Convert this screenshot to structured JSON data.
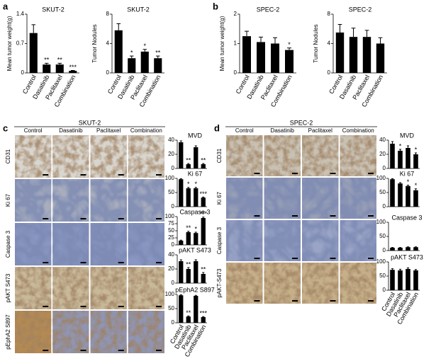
{
  "panels": [
    {
      "label": "a"
    },
    {
      "label": "b"
    },
    {
      "label": "c",
      "title": "SKUT-2",
      "columns": [
        "Control",
        "Dasatinib",
        "Paclitaxel",
        "Combination"
      ],
      "rows": [
        "CD31",
        "Ki 67",
        "Caspase 3",
        "pAKT S473",
        "pEphA2 S897"
      ]
    },
    {
      "label": "d",
      "title": "SPEC-2",
      "columns": [
        "Control",
        "Dasatinib",
        "Paclitaxel",
        "Combination"
      ],
      "rows": [
        "CD31",
        "Ki 67",
        "Caspase 3",
        "pAKT-S473"
      ]
    }
  ],
  "chart_data": [
    {
      "type": "bar",
      "title": "SKUT-2",
      "ylabel": "Mean tumor weight(g)",
      "categories": [
        "Control",
        "Dasatinib",
        "Paclitaxel",
        "Combination"
      ],
      "values": [
        0.95,
        0.2,
        0.2,
        0.05
      ],
      "errors": [
        0.2,
        0.03,
        0.03,
        0.01
      ],
      "stars": [
        null,
        "**",
        "**",
        "***"
      ],
      "ylim": [
        0,
        1.4
      ],
      "yticks": [
        0,
        0.7,
        1.4
      ],
      "color": "#000000"
    },
    {
      "type": "bar",
      "title": "SKUT-2",
      "ylabel": "Tumor Nodules",
      "categories": [
        "Control",
        "Dasatinib",
        "Paclitaxel",
        "Combination"
      ],
      "values": [
        5.8,
        2,
        2.9,
        2
      ],
      "errors": [
        0.9,
        0.3,
        0.3,
        0.3
      ],
      "stars": [
        null,
        "*",
        "*",
        "**"
      ],
      "ylim": [
        0,
        8
      ],
      "yticks": [
        0,
        4,
        8
      ],
      "color": "#000000"
    },
    {
      "type": "bar",
      "title": "SPEC-2",
      "ylabel": "Mean tumor weight(g)",
      "categories": [
        "Control",
        "Dasatinib",
        "Paclitaxel",
        "Combination"
      ],
      "values": [
        1.25,
        1.05,
        1.0,
        0.78
      ],
      "errors": [
        0.17,
        0.17,
        0.2,
        0.07
      ],
      "stars": [
        null,
        null,
        null,
        "*"
      ],
      "ylim": [
        0,
        2
      ],
      "yticks": [
        0,
        1,
        2
      ],
      "color": "#000000"
    },
    {
      "type": "bar",
      "title": "SPEC-2",
      "ylabel": "Tumor Nodules",
      "categories": [
        "Control",
        "Dasatinib",
        "Paclitaxel",
        "Combination"
      ],
      "values": [
        5.5,
        4.9,
        4.9,
        4.0
      ],
      "errors": [
        1.1,
        1.2,
        0.9,
        0.8
      ],
      "stars": [
        null,
        null,
        null,
        null
      ],
      "ylim": [
        0,
        8
      ],
      "yticks": [
        0,
        4,
        8
      ],
      "color": "#000000"
    },
    {
      "type": "bar",
      "title": "MVD",
      "values": [
        37,
        6,
        30,
        6
      ],
      "errors": [
        2,
        1,
        2,
        1
      ],
      "stars": [
        null,
        "**",
        null,
        "**"
      ],
      "ylim": [
        0,
        40
      ],
      "yticks": [
        0,
        20,
        40
      ],
      "color": "#000000"
    },
    {
      "type": "bar",
      "title": "Ki 67",
      "values": [
        97,
        65,
        65,
        32
      ],
      "errors": [
        2,
        3,
        3,
        2
      ],
      "stars": [
        null,
        "*",
        "*",
        "***"
      ],
      "ylim": [
        0,
        100
      ],
      "yticks": [
        0,
        50,
        100
      ],
      "color": "#000000"
    },
    {
      "type": "bar",
      "title": "Caspase 3",
      "values": [
        15,
        45,
        42,
        95
      ],
      "errors": [
        2,
        3,
        3,
        3
      ],
      "stars": [
        null,
        "**",
        "*",
        "***"
      ],
      "ylim": [
        0,
        100
      ],
      "yticks": [
        0,
        25,
        50,
        75,
        100
      ],
      "color": "#000000"
    },
    {
      "type": "bar",
      "title": "pAKT S473",
      "values": [
        31,
        20,
        31,
        13
      ],
      "errors": [
        2,
        2,
        2,
        2
      ],
      "stars": [
        null,
        "**",
        null,
        "**"
      ],
      "ylim": [
        0,
        40
      ],
      "yticks": [
        0,
        20,
        40
      ],
      "color": "#000000"
    },
    {
      "type": "bar",
      "title": "pEphA2 S897",
      "categories": [
        "Control",
        "Dasatinib",
        "Paclitaxel",
        "Combination"
      ],
      "values": [
        97,
        22,
        95,
        20
      ],
      "errors": [
        2,
        2,
        2,
        2
      ],
      "stars": [
        null,
        "**",
        null,
        "***"
      ],
      "ylim": [
        0,
        100
      ],
      "yticks": [
        0,
        50,
        100
      ],
      "color": "#000000"
    },
    {
      "type": "bar",
      "title": "MVD",
      "values": [
        35,
        25,
        29,
        20
      ],
      "errors": [
        3,
        2,
        3,
        2
      ],
      "stars": [
        null,
        "*",
        null,
        "*"
      ],
      "ylim": [
        0,
        40
      ],
      "yticks": [
        0,
        20,
        40
      ],
      "color": "#000000"
    },
    {
      "type": "bar",
      "title": "Ki 67",
      "values": [
        97,
        82,
        73,
        58
      ],
      "errors": [
        2,
        3,
        3,
        5
      ],
      "stars": [
        null,
        null,
        "*",
        "*"
      ],
      "ylim": [
        0,
        100
      ],
      "yticks": [
        0,
        50,
        100
      ],
      "color": "#000000"
    },
    {
      "type": "bar",
      "title": "Caspase 3",
      "values": [
        10,
        10,
        12,
        12
      ],
      "errors": [
        1,
        1,
        1,
        1
      ],
      "stars": [
        null,
        null,
        null,
        null
      ],
      "ylim": [
        0,
        100
      ],
      "yticks": [
        0,
        50,
        100
      ],
      "color": "#000000"
    },
    {
      "type": "bar",
      "title": "pAKT S473",
      "categories": [
        "Control",
        "Dasatinib",
        "Paclitaxel",
        "Combination"
      ],
      "values": [
        72,
        70,
        75,
        70
      ],
      "errors": [
        4,
        4,
        4,
        3
      ],
      "stars": [
        null,
        null,
        null,
        null
      ],
      "ylim": [
        0,
        100
      ],
      "yticks": [
        0,
        50,
        100
      ],
      "color": "#000000"
    }
  ]
}
